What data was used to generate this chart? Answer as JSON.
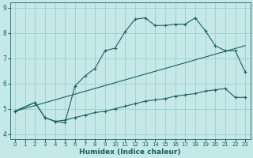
{
  "xlabel": "Humidex (Indice chaleur)",
  "bg_color": "#c5e8e8",
  "grid_color": "#9ecece",
  "line_color": "#1a6060",
  "xlim": [
    -0.5,
    23.5
  ],
  "ylim": [
    3.8,
    9.2
  ],
  "yticks": [
    4,
    5,
    6,
    7,
    8,
    9
  ],
  "xticks": [
    0,
    1,
    2,
    3,
    4,
    5,
    6,
    7,
    8,
    9,
    10,
    11,
    12,
    13,
    14,
    15,
    16,
    17,
    18,
    19,
    20,
    21,
    22,
    23
  ],
  "line1_x": [
    0,
    2,
    3,
    4,
    5,
    6,
    7,
    8,
    9,
    10,
    11,
    12,
    13,
    14,
    15,
    16,
    17,
    18,
    19,
    20,
    21,
    22,
    23
  ],
  "line1_y": [
    4.9,
    5.25,
    4.65,
    4.5,
    4.45,
    5.9,
    6.3,
    6.6,
    7.3,
    7.4,
    8.05,
    8.55,
    8.6,
    8.3,
    8.3,
    8.35,
    8.35,
    8.6,
    8.1,
    7.5,
    7.3,
    7.3,
    6.45
  ],
  "line2_x": [
    0,
    2,
    3,
    4,
    5,
    6,
    7,
    8,
    9,
    10,
    11,
    12,
    13,
    14,
    15,
    16,
    17,
    18,
    19,
    20,
    21,
    22,
    23
  ],
  "line2_y": [
    4.9,
    5.25,
    4.65,
    4.5,
    4.55,
    4.65,
    4.75,
    4.85,
    4.9,
    5.0,
    5.1,
    5.2,
    5.3,
    5.35,
    5.4,
    5.5,
    5.55,
    5.6,
    5.7,
    5.75,
    5.8,
    5.45,
    5.45
  ],
  "line3_x": [
    0,
    23
  ],
  "line3_y": [
    4.9,
    7.5
  ]
}
